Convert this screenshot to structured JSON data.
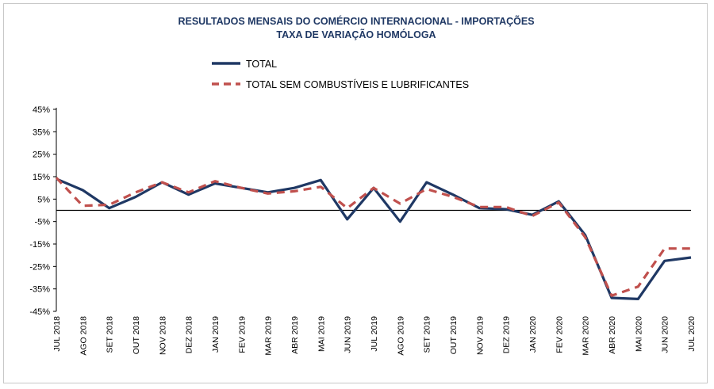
{
  "chart_data": {
    "type": "line",
    "title": "RESULTADOS MENSAIS DO COMÉRCIO INTERNACIONAL  - IMPORTAÇÕES",
    "subtitle": "TAXA DE VARIAÇÃO HOMÓLOGA",
    "categories": [
      "JUL 2018",
      "AGO 2018",
      "SET 2018",
      "OUT 2018",
      "NOV 2018",
      "DEZ 2018",
      "JAN 2019",
      "FEV 2019",
      "MAR 2019",
      "ABR 2019",
      "MAI 2019",
      "JUN 2019",
      "JUL 2019",
      "AGO 2019",
      "SET 2019",
      "OUT 2019",
      "NOV 2019",
      "DEZ 2019",
      "JAN 2020",
      "FEV 2020",
      "MAR 2020",
      "ABR 2020",
      "MAI 2020",
      "JUN 2020",
      "JUL 2020"
    ],
    "series": [
      {
        "name": "TOTAL",
        "color": "#1f3864",
        "style": "solid",
        "values": [
          14,
          9,
          1,
          6,
          12.5,
          7,
          12,
          10,
          8,
          10,
          13.5,
          -4,
          10,
          -5,
          12.5,
          7,
          1,
          0.5,
          -2,
          4,
          -11,
          -39,
          -39.5,
          -22.5,
          -21
        ]
      },
      {
        "name": "TOTAL SEM COMBUSTÍVEIS E LUBRIFICANTES",
        "color": "#c0504d",
        "style": "dashed",
        "values": [
          14.5,
          2,
          2.5,
          8,
          12.5,
          8,
          13,
          10,
          7.5,
          8.5,
          10.5,
          1,
          10,
          3,
          9.5,
          6,
          1.5,
          1.5,
          -2.5,
          3.5,
          -12,
          -38,
          -34,
          -17,
          -17
        ]
      }
    ],
    "yticks": [
      "45%",
      "35%",
      "25%",
      "15%",
      "5%",
      "-5%",
      "-15%",
      "-25%",
      "-35%",
      "-45%"
    ],
    "ylim": [
      -45,
      45
    ],
    "y_reference_line": 0,
    "legend_position": "top-center",
    "grid": false
  }
}
